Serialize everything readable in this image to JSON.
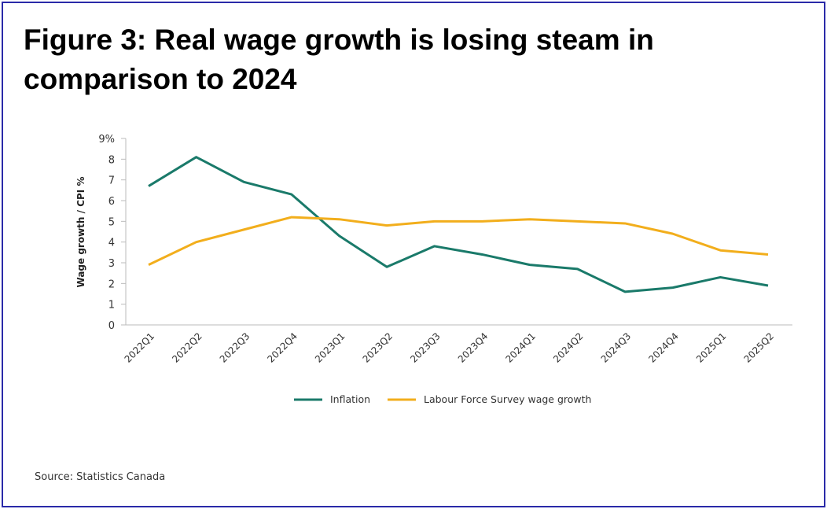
{
  "title": "Figure 3: Real wage growth is losing steam in comparison to 2024",
  "source": "Source: Statistics Canada",
  "chart_data": {
    "type": "line",
    "title": "Figure 3: Real wage growth is losing steam in comparison to 2024",
    "xlabel": "",
    "ylabel": "Wage growth / CPI %",
    "ylim": [
      0,
      9
    ],
    "yticks": [
      "0",
      "1",
      "2",
      "3",
      "4",
      "5",
      "6",
      "7",
      "8",
      "9%"
    ],
    "grid": false,
    "legend_position": "bottom-center",
    "categories": [
      "2022Q1",
      "2022Q2",
      "2022Q3",
      "2022Q4",
      "2023Q1",
      "2023Q2",
      "2023Q3",
      "2023Q4",
      "2024Q1",
      "2024Q2",
      "2024Q3",
      "2024Q4",
      "2025Q1",
      "2025Q2"
    ],
    "series": [
      {
        "name": "Inflation",
        "color": "#1a7a6a",
        "values": [
          6.7,
          8.1,
          6.9,
          6.3,
          4.3,
          2.8,
          3.8,
          3.4,
          2.9,
          2.7,
          1.6,
          1.8,
          2.3,
          1.9
        ]
      },
      {
        "name": "Labour Force Survey wage growth",
        "color": "#f2ae1c",
        "values": [
          2.9,
          4.0,
          4.6,
          5.2,
          5.1,
          4.8,
          5.0,
          5.0,
          5.1,
          5.0,
          4.9,
          4.4,
          3.6,
          3.4
        ]
      }
    ]
  }
}
